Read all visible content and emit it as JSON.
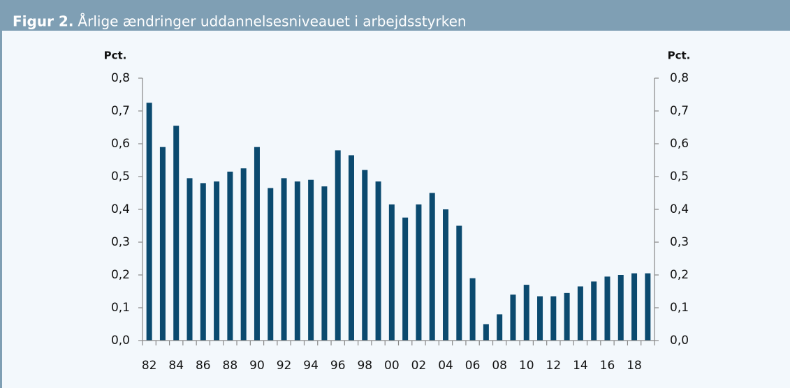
{
  "chart_data": {
    "type": "bar",
    "title_label": "Figur 2.",
    "title": "Årlige ændringer uddannelsesniveauet i arbejdsstyrken",
    "ylabel": "Pct.",
    "y2label": "Pct.",
    "categories": [
      "82",
      null,
      "84",
      null,
      "86",
      null,
      "88",
      null,
      "90",
      null,
      "92",
      null,
      "94",
      null,
      "96",
      null,
      "98",
      null,
      "00",
      null,
      "02",
      null,
      "04",
      null,
      "06",
      null,
      "08",
      null,
      "10",
      null,
      "12",
      null,
      "14",
      null,
      "16",
      null,
      "18",
      null
    ],
    "values": [
      0.725,
      0.59,
      0.655,
      0.495,
      0.48,
      0.485,
      0.515,
      0.525,
      0.59,
      0.465,
      0.495,
      0.485,
      0.49,
      0.47,
      0.58,
      0.565,
      0.52,
      0.485,
      0.415,
      0.375,
      0.415,
      0.45,
      0.4,
      0.35,
      0.19,
      0.05,
      0.08,
      0.14,
      0.17,
      0.135,
      0.135,
      0.145,
      0.165,
      0.18,
      0.195,
      0.2,
      0.205,
      0.205
    ],
    "color": "#0b4a6f",
    "ylim": [
      0,
      0.8
    ],
    "yticks": [
      {
        "value": 0,
        "label": "0,0"
      },
      {
        "value": 0.1,
        "label": "0,1"
      },
      {
        "value": 0.2,
        "label": "0,2"
      },
      {
        "value": 0.3,
        "label": "0,3"
      },
      {
        "value": 0.4,
        "label": "0,4"
      },
      {
        "value": 0.5,
        "label": "0,5"
      },
      {
        "value": 0.6,
        "label": "0,6"
      },
      {
        "value": 0.7,
        "label": "0,7"
      },
      {
        "value": 0.8,
        "label": "0,8"
      }
    ],
    "y2lim": [
      0,
      0.8
    ],
    "y2ticks": [
      {
        "value": 0,
        "label": "0,0"
      },
      {
        "value": 0.1,
        "label": "0,1"
      },
      {
        "value": 0.2,
        "label": "0,2"
      },
      {
        "value": 0.3,
        "label": "0,3"
      },
      {
        "value": 0.4,
        "label": "0,4"
      },
      {
        "value": 0.5,
        "label": "0,5"
      },
      {
        "value": 0.6,
        "label": "0,6"
      },
      {
        "value": 0.7,
        "label": "0,7"
      },
      {
        "value": 0.8,
        "label": "0,8"
      }
    ]
  }
}
